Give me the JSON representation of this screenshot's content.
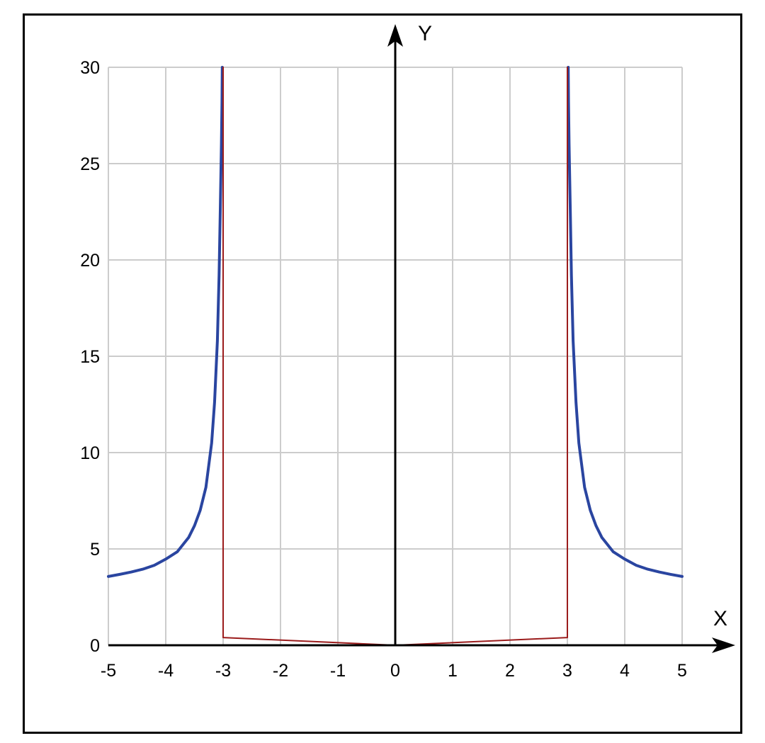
{
  "chart_data": {
    "type": "line",
    "title": "",
    "xlabel": "X",
    "ylabel": "Y",
    "xlim": [
      -5,
      5
    ],
    "ylim": [
      0,
      30
    ],
    "x_ticks": [
      "-5",
      "-4",
      "-3",
      "-2",
      "-1",
      "0",
      "1",
      "2",
      "3",
      "4",
      "5"
    ],
    "y_ticks": [
      "0",
      "5",
      "10",
      "15",
      "20",
      "25",
      "30"
    ],
    "grid": true,
    "colors": {
      "curve": "#2a45a0",
      "integral": "#9b1c1c",
      "grid": "#cccccc",
      "axis": "#000000"
    },
    "series": [
      {
        "x": [
          -5,
          -4.8,
          -4.6,
          -4.4,
          -4.2,
          -4,
          -3.8,
          -3.6,
          -3.5,
          -3.4,
          -3.3,
          -3.2,
          -3.15,
          -3.1,
          -3.07,
          -3.05,
          -3.03,
          -3.02,
          -3.015
        ],
        "y": [
          3.57,
          3.68,
          3.8,
          3.95,
          4.15,
          4.47,
          4.85,
          5.6,
          6.2,
          7.0,
          8.2,
          10.5,
          12.6,
          15.8,
          19.2,
          22.6,
          26.0,
          28.2,
          30
        ],
        "style": "curve"
      },
      {
        "x": [
          3.015,
          3.02,
          3.03,
          3.05,
          3.07,
          3.1,
          3.15,
          3.2,
          3.3,
          3.4,
          3.5,
          3.6,
          3.8,
          4,
          4.2,
          4.4,
          4.6,
          4.8,
          5
        ],
        "y": [
          30,
          28.2,
          26.0,
          22.6,
          19.2,
          15.8,
          12.6,
          10.5,
          8.2,
          7.0,
          6.2,
          5.6,
          4.85,
          4.47,
          4.15,
          3.95,
          3.8,
          3.68,
          3.57
        ],
        "style": "curve"
      },
      {
        "x": [
          -3,
          -3,
          0,
          3,
          3
        ],
        "y": [
          30,
          0.4,
          0,
          0.4,
          30
        ],
        "style": "integral"
      }
    ]
  }
}
